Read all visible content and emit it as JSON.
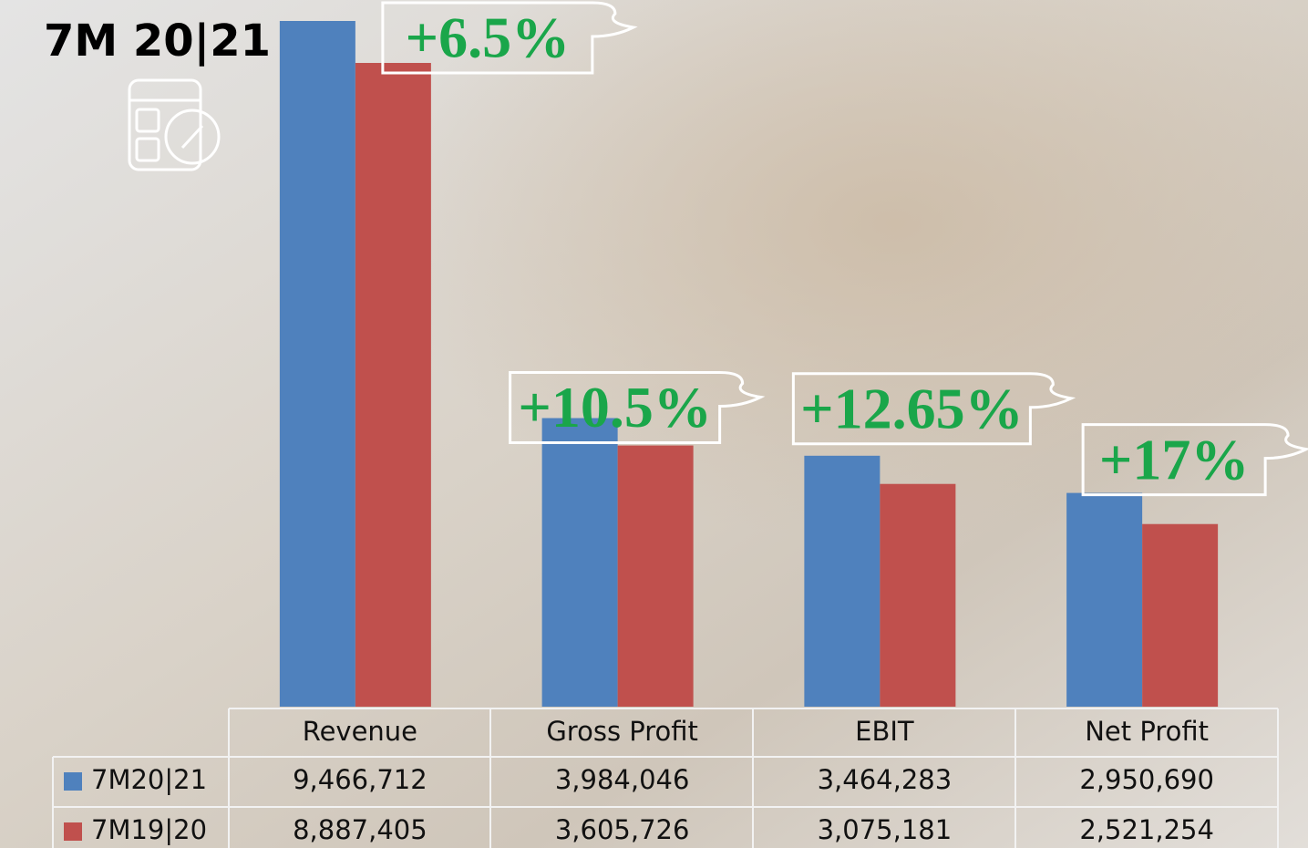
{
  "chart_data": {
    "type": "bar",
    "title": "7M 20|21",
    "categories": [
      "Revenue",
      "Gross Profit",
      "EBIT",
      "Net Profit"
    ],
    "series": [
      {
        "name": "7M20|21",
        "color": "#4f81bd",
        "values": [
          9466712,
          3984046,
          3464283,
          2950690
        ],
        "value_labels": [
          "9,466,712",
          "3,984,046",
          "3,464,283",
          "2,950,690"
        ]
      },
      {
        "name": "7M19|20",
        "color": "#c0504d",
        "values": [
          8887405,
          3605726,
          3075181,
          2521254
        ],
        "value_labels": [
          "8,887,405",
          "3,605,726",
          "3,075,181",
          "2,521,254"
        ]
      }
    ],
    "annotations": [
      "+6.5%",
      "+10.5%",
      "+12.65%",
      "+17%"
    ],
    "annotation_color": "#1aa64a"
  }
}
